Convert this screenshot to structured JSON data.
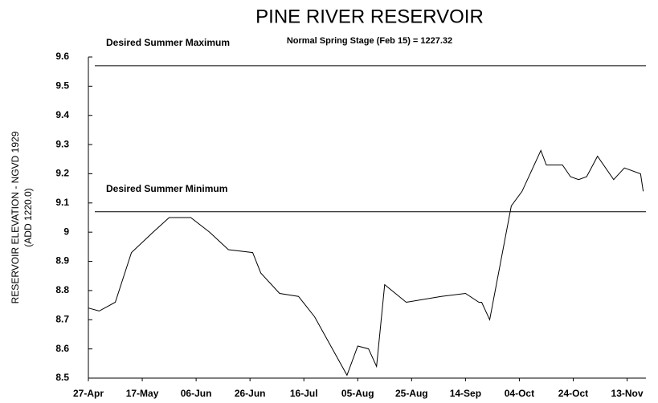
{
  "chart_data": {
    "type": "line",
    "title": "PINE RIVER RESERVOIR",
    "subtitle": "Normal Spring Stage (Feb 15) = 1227.32",
    "y_label": [
      "RESERVOIR ELEVATION - NGVD 1929",
      "(ADD 1220.0)"
    ],
    "x": [
      117,
      121,
      127,
      133,
      141,
      147,
      155,
      162,
      169,
      178,
      181,
      188,
      195,
      201,
      213,
      217,
      221,
      224,
      227,
      235,
      248,
      257,
      262,
      263,
      266,
      274,
      278,
      285,
      287,
      293,
      296,
      299,
      302,
      306,
      312,
      316,
      322,
      323
    ],
    "values": [
      8.74,
      8.73,
      8.76,
      8.93,
      9.0,
      9.05,
      9.05,
      9.0,
      8.94,
      8.93,
      8.86,
      8.79,
      8.78,
      8.71,
      8.51,
      8.61,
      8.6,
      8.54,
      8.82,
      8.76,
      8.78,
      8.79,
      8.76,
      8.76,
      8.7,
      9.09,
      9.14,
      9.28,
      9.23,
      9.23,
      9.19,
      9.18,
      9.19,
      9.26,
      9.18,
      9.22,
      9.2,
      9.14
    ],
    "color": "#000000",
    "reference_lines": [
      {
        "label": "Desired Summer Maximum",
        "value": 9.57
      },
      {
        "label": "Desired Summer Minimum",
        "value": 9.07
      }
    ],
    "xlim": [
      117,
      324
    ],
    "xticks": [
      {
        "value": 117,
        "label": "27-Apr"
      },
      {
        "value": 137,
        "label": "17-May"
      },
      {
        "value": 157,
        "label": "06-Jun"
      },
      {
        "value": 177,
        "label": "26-Jun"
      },
      {
        "value": 197,
        "label": "16-Jul"
      },
      {
        "value": 217,
        "label": "05-Aug"
      },
      {
        "value": 237,
        "label": "25-Aug"
      },
      {
        "value": 257,
        "label": "14-Sep"
      },
      {
        "value": 277,
        "label": "04-Oct"
      },
      {
        "value": 297,
        "label": "24-Oct"
      },
      {
        "value": 317,
        "label": "13-Nov"
      }
    ],
    "ylim": [
      8.5,
      9.6
    ],
    "yticks": [
      8.5,
      8.6,
      8.7,
      8.8,
      8.9,
      9,
      9.1,
      9.2,
      9.3,
      9.4,
      9.5,
      9.6
    ],
    "grid": false
  }
}
